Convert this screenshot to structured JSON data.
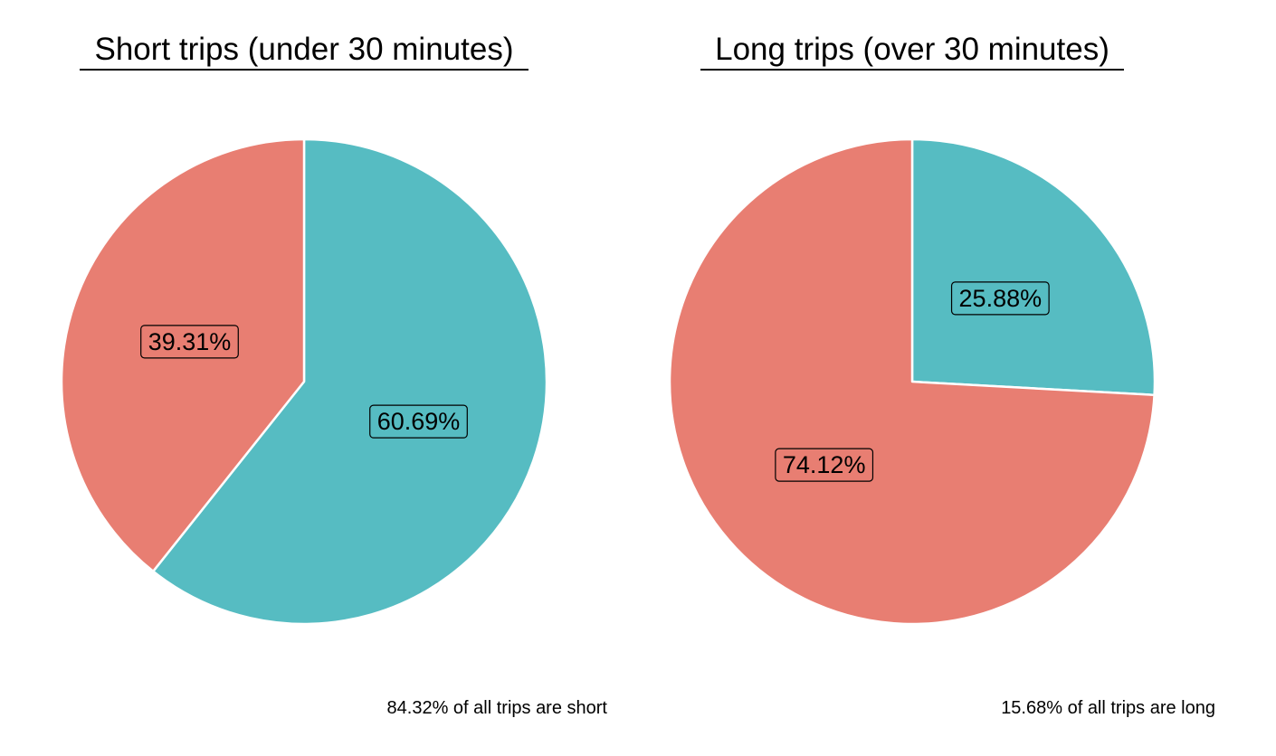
{
  "colors": {
    "salmon": "#E87E72",
    "teal": "#56BCC2",
    "background": "#FFFFFF"
  },
  "chart_data": [
    {
      "type": "pie",
      "title": "Short trips (under 30 minutes)",
      "caption": "84.32% of all trips are short",
      "start": "12 o'clock, clockwise",
      "slices": [
        {
          "label": "60.69%",
          "value": 60.69,
          "color": "#56BCC2"
        },
        {
          "label": "39.31%",
          "value": 39.31,
          "color": "#E87E72"
        }
      ]
    },
    {
      "type": "pie",
      "title": "Long trips (over 30 minutes)",
      "caption": "15.68% of all trips are long",
      "start": "12 o'clock, clockwise",
      "slices": [
        {
          "label": "25.88%",
          "value": 25.88,
          "color": "#56BCC2"
        },
        {
          "label": "74.12%",
          "value": 74.12,
          "color": "#E87E72"
        }
      ]
    }
  ]
}
